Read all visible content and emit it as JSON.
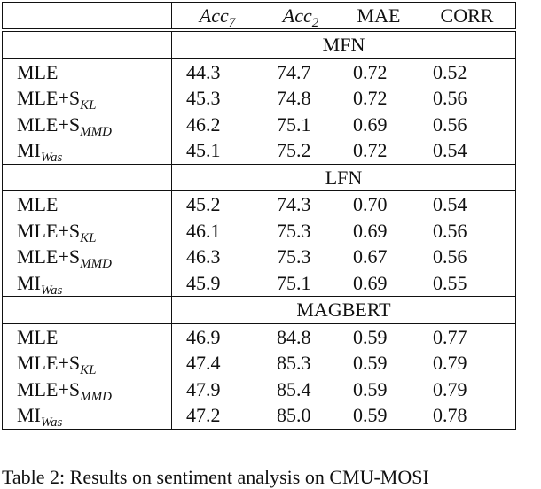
{
  "header": [
    {
      "text": "Acc",
      "sub": "7"
    },
    {
      "text": "Acc",
      "sub": "2"
    },
    {
      "text": "MAE"
    },
    {
      "text": "CORR"
    }
  ],
  "sections": [
    {
      "title": "MFN",
      "rows": [
        {
          "method": {
            "text": "MLE"
          },
          "values": [
            "44.3",
            "74.7",
            "0.72",
            "0.52"
          ]
        },
        {
          "method": {
            "text": "MLE+S",
            "sub": "KL"
          },
          "values": [
            "45.3",
            "74.8",
            "0.72",
            "0.56"
          ]
        },
        {
          "method": {
            "text": "MLE+S",
            "sub": "MMD"
          },
          "values": [
            "46.2",
            "75.1",
            "0.69",
            "0.56"
          ]
        },
        {
          "method": {
            "text": "MI",
            "sub": "Was"
          },
          "values": [
            "45.1",
            "75.2",
            "0.72",
            "0.54"
          ]
        }
      ]
    },
    {
      "title": "LFN",
      "rows": [
        {
          "method": {
            "text": "MLE"
          },
          "values": [
            "45.2",
            "74.3",
            "0.70",
            "0.54"
          ]
        },
        {
          "method": {
            "text": "MLE+S",
            "sub": "KL"
          },
          "values": [
            "46.1",
            "75.3",
            "0.69",
            "0.56"
          ]
        },
        {
          "method": {
            "text": "MLE+S",
            "sub": "MMD"
          },
          "values": [
            "46.3",
            "75.3",
            "0.67",
            "0.56"
          ]
        },
        {
          "method": {
            "text": "MI",
            "sub": "Was"
          },
          "values": [
            "45.9",
            "75.1",
            "0.69",
            "0.55"
          ]
        }
      ]
    },
    {
      "title": "MAGBERT",
      "rows": [
        {
          "method": {
            "text": "MLE"
          },
          "values": [
            "46.9",
            "84.8",
            "0.59",
            "0.77"
          ]
        },
        {
          "method": {
            "text": "MLE+S",
            "sub": "KL"
          },
          "values": [
            "47.4",
            "85.3",
            "0.59",
            "0.79"
          ]
        },
        {
          "method": {
            "text": "MLE+S",
            "sub": "MMD"
          },
          "values": [
            "47.9",
            "85.4",
            "0.59",
            "0.79"
          ]
        },
        {
          "method": {
            "text": "MI",
            "sub": "Was"
          },
          "values": [
            "47.2",
            "85.0",
            "0.59",
            "0.78"
          ]
        }
      ]
    }
  ],
  "caption": "Table 2: Results on sentiment analysis on CMU-MOSI"
}
